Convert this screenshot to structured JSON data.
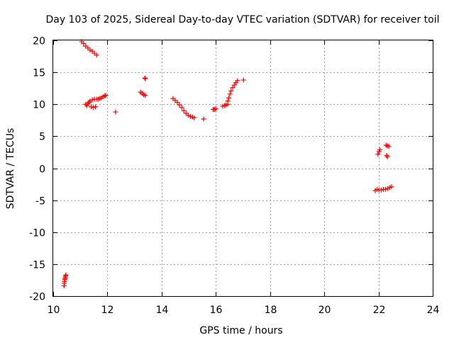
{
  "chart_data": {
    "type": "scatter",
    "title": "Day 103 of 2025, Sidereal Day-to-day VTEC variation (SDTVAR) for receiver toil",
    "xlabel": "GPS time / hours",
    "ylabel": "SDTVAR / TECUs",
    "xlim": [
      10,
      24
    ],
    "ylim": [
      -20,
      20
    ],
    "xticks": [
      "10",
      "12",
      "14",
      "16",
      "18",
      "20",
      "22",
      "24"
    ],
    "yticks": [
      "-20",
      "-15",
      "-10",
      "-5",
      "0",
      "5",
      "10",
      "15",
      "20"
    ],
    "grid": true,
    "marker": "+",
    "colors": {
      "points": "#ff0000",
      "grid": "#a0a0a0",
      "axes": "#000000"
    },
    "series": [
      {
        "name": "SDTVAR",
        "points": [
          [
            10.4,
            -18.4
          ],
          [
            10.41,
            -18.0
          ],
          [
            10.42,
            -17.7
          ],
          [
            10.43,
            -17.4
          ],
          [
            10.44,
            -17.2
          ],
          [
            10.45,
            -17.0
          ],
          [
            10.46,
            -16.8
          ],
          [
            10.47,
            -16.7
          ],
          [
            11.05,
            19.8
          ],
          [
            11.12,
            19.5
          ],
          [
            11.2,
            19.1
          ],
          [
            11.28,
            18.8
          ],
          [
            11.36,
            18.5
          ],
          [
            11.44,
            18.3
          ],
          [
            11.52,
            18.0
          ],
          [
            11.6,
            17.7
          ],
          [
            11.2,
            10.0
          ],
          [
            11.24,
            9.8
          ],
          [
            11.28,
            10.1
          ],
          [
            11.32,
            10.3
          ],
          [
            11.36,
            10.5
          ],
          [
            11.4,
            9.6
          ],
          [
            11.44,
            10.7
          ],
          [
            11.48,
            9.5
          ],
          [
            11.52,
            10.8
          ],
          [
            11.56,
            9.6
          ],
          [
            11.6,
            10.8
          ],
          [
            11.66,
            10.8
          ],
          [
            11.72,
            10.9
          ],
          [
            11.78,
            11.0
          ],
          [
            11.84,
            11.2
          ],
          [
            11.9,
            11.3
          ],
          [
            11.94,
            11.4
          ],
          [
            12.3,
            8.8
          ],
          [
            13.22,
            11.9
          ],
          [
            13.28,
            11.7
          ],
          [
            13.34,
            11.5
          ],
          [
            13.4,
            11.4
          ],
          [
            13.38,
            14.1
          ],
          [
            13.4,
            14.0
          ],
          [
            14.42,
            10.9
          ],
          [
            14.5,
            10.6
          ],
          [
            14.58,
            10.3
          ],
          [
            14.66,
            9.9
          ],
          [
            14.74,
            9.5
          ],
          [
            14.82,
            9.0
          ],
          [
            14.9,
            8.6
          ],
          [
            14.98,
            8.3
          ],
          [
            15.06,
            8.1
          ],
          [
            15.14,
            8.0
          ],
          [
            15.2,
            7.9
          ],
          [
            15.55,
            7.7
          ],
          [
            15.9,
            9.2
          ],
          [
            15.95,
            9.2
          ],
          [
            16.0,
            9.3
          ],
          [
            16.25,
            9.7
          ],
          [
            16.32,
            9.8
          ],
          [
            16.38,
            9.9
          ],
          [
            16.44,
            10.0
          ],
          [
            16.44,
            10.5
          ],
          [
            16.48,
            11.0
          ],
          [
            16.52,
            11.6
          ],
          [
            16.56,
            12.1
          ],
          [
            16.62,
            12.6
          ],
          [
            16.68,
            13.0
          ],
          [
            16.74,
            13.4
          ],
          [
            16.8,
            13.7
          ],
          [
            17.02,
            13.8
          ],
          [
            21.88,
            -3.5
          ],
          [
            21.95,
            -3.3
          ],
          [
            22.02,
            -3.4
          ],
          [
            22.1,
            -3.4
          ],
          [
            22.18,
            -3.3
          ],
          [
            22.26,
            -3.3
          ],
          [
            22.34,
            -3.2
          ],
          [
            22.42,
            -3.0
          ],
          [
            22.48,
            -2.9
          ],
          [
            21.98,
            2.2
          ],
          [
            22.02,
            2.6
          ],
          [
            22.05,
            2.9
          ],
          [
            22.28,
            3.6
          ],
          [
            22.33,
            3.5
          ],
          [
            22.38,
            3.4
          ],
          [
            22.3,
            2.0
          ],
          [
            22.33,
            1.8
          ]
        ]
      }
    ]
  }
}
